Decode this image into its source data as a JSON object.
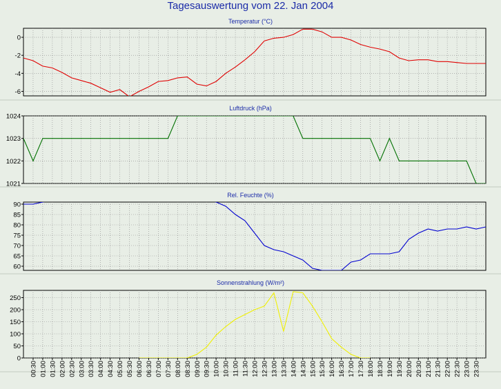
{
  "title": "Tagesauswertung vom 22. Jan 2004",
  "time_labels": [
    "00:30",
    "01:00",
    "01:30",
    "02:00",
    "02:30",
    "03:00",
    "03:30",
    "04:00",
    "04:30",
    "05:00",
    "05:30",
    "06:00",
    "06:30",
    "07:00",
    "07:30",
    "08:00",
    "08:30",
    "09:00",
    "09:30",
    "10:00",
    "10:30",
    "11:00",
    "11:30",
    "12:00",
    "12:30",
    "13:00",
    "13:30",
    "14:00",
    "14:30",
    "15:00",
    "15:30",
    "16:00",
    "16:30",
    "17:00",
    "17:30",
    "18:00",
    "18:30",
    "19:00",
    "19:30",
    "20:00",
    "20:30",
    "21:00",
    "21:30",
    "22:00",
    "22:30",
    "23:00",
    "23:30"
  ],
  "chart_data": [
    {
      "type": "line",
      "title": "Temperatur (°C)",
      "color": "#e00000",
      "ylim": [
        -6.5,
        1
      ],
      "yticks": [
        0,
        -2,
        -4,
        -6
      ],
      "grid": true,
      "x": [
        "00:00",
        "00:30",
        "01:00",
        "01:30",
        "02:00",
        "02:30",
        "03:00",
        "03:30",
        "04:00",
        "04:30",
        "05:00",
        "05:30",
        "06:00",
        "06:30",
        "07:00",
        "07:30",
        "08:00",
        "08:30",
        "09:00",
        "09:30",
        "10:00",
        "10:30",
        "11:00",
        "11:30",
        "12:00",
        "12:30",
        "13:00",
        "13:30",
        "14:00",
        "14:30",
        "15:00",
        "15:30",
        "16:00",
        "16:30",
        "17:00",
        "17:30",
        "18:00",
        "18:30",
        "19:00",
        "19:30",
        "20:00",
        "20:30",
        "21:00",
        "21:30",
        "22:00",
        "22:30",
        "23:00",
        "23:30",
        "24:00"
      ],
      "values": [
        -2.3,
        -2.6,
        -3.2,
        -3.4,
        -3.9,
        -4.5,
        -4.8,
        -5.1,
        -5.6,
        -6.1,
        -5.8,
        -6.6,
        -6.0,
        -5.5,
        -4.9,
        -4.8,
        -4.5,
        -4.4,
        -5.2,
        -5.4,
        -4.9,
        -4.0,
        -3.3,
        -2.5,
        -1.6,
        -0.4,
        -0.1,
        0.0,
        0.3,
        0.9,
        0.9,
        0.6,
        0.0,
        0.0,
        -0.3,
        -0.8,
        -1.1,
        -1.3,
        -1.6,
        -2.3,
        -2.6,
        -2.5,
        -2.5,
        -2.7,
        -2.7,
        -2.8,
        -2.9,
        -2.9,
        -2.9
      ]
    },
    {
      "type": "line",
      "title": "Luftdruck (hPa)",
      "color": "#007000",
      "ylim": [
        1021,
        1024
      ],
      "yticks": [
        1024,
        1023,
        1022,
        1021
      ],
      "grid": true,
      "x": [
        "00:00",
        "00:30",
        "01:00",
        "01:30",
        "02:00",
        "02:30",
        "03:00",
        "03:30",
        "04:00",
        "04:30",
        "05:00",
        "05:30",
        "06:00",
        "06:30",
        "07:00",
        "07:30",
        "08:00",
        "08:30",
        "09:00",
        "09:30",
        "10:00",
        "10:30",
        "11:00",
        "11:30",
        "12:00",
        "12:30",
        "13:00",
        "13:30",
        "14:00",
        "14:30",
        "15:00",
        "15:30",
        "16:00",
        "16:30",
        "17:00",
        "17:30",
        "18:00",
        "18:30",
        "19:00",
        "19:30",
        "20:00",
        "20:30",
        "21:00",
        "21:30",
        "22:00",
        "22:30",
        "23:00",
        "23:30",
        "24:00"
      ],
      "values": [
        1023,
        1022,
        1023,
        1023,
        1023,
        1023,
        1023,
        1023,
        1023,
        1023,
        1023,
        1023,
        1023,
        1023,
        1023,
        1023,
        1024,
        1024,
        1024,
        1024,
        1024,
        1024,
        1024,
        1024,
        1024,
        1024,
        1024,
        1024,
        1024,
        1023,
        1023,
        1023,
        1023,
        1023,
        1023,
        1023,
        1023,
        1022,
        1023,
        1022,
        1022,
        1022,
        1022,
        1022,
        1022,
        1022,
        1022,
        1021,
        1021
      ]
    },
    {
      "type": "line",
      "title": "Rel. Feuchte (%)",
      "color": "#0000d0",
      "ylim": [
        58,
        91
      ],
      "yticks": [
        90,
        85,
        80,
        75,
        70,
        65,
        60
      ],
      "grid": true,
      "x": [
        "00:00",
        "00:30",
        "01:00",
        "01:30",
        "02:00",
        "02:30",
        "03:00",
        "03:30",
        "04:00",
        "04:30",
        "05:00",
        "05:30",
        "06:00",
        "06:30",
        "07:00",
        "07:30",
        "08:00",
        "08:30",
        "09:00",
        "09:30",
        "10:00",
        "10:30",
        "11:00",
        "11:30",
        "12:00",
        "12:30",
        "13:00",
        "13:30",
        "14:00",
        "14:30",
        "15:00",
        "15:30",
        "16:00",
        "16:30",
        "17:00",
        "17:30",
        "18:00",
        "18:30",
        "19:00",
        "19:30",
        "20:00",
        "20:30",
        "21:00",
        "21:30",
        "22:00",
        "22:30",
        "23:00",
        "23:30",
        "24:00"
      ],
      "values": [
        90,
        90,
        91,
        92,
        92,
        92,
        92,
        92,
        92,
        92,
        92,
        92,
        92,
        92,
        92,
        92,
        92,
        92,
        92,
        92,
        91,
        89,
        85,
        82,
        76,
        70,
        68,
        67,
        65,
        63,
        59,
        58,
        58,
        58,
        62,
        63,
        66,
        66,
        66,
        67,
        73,
        76,
        78,
        77,
        78,
        78,
        79,
        78,
        79
      ]
    },
    {
      "type": "line",
      "title": "Sonnenstrahlung (W/m²)",
      "color": "#f0f000",
      "ylim": [
        0,
        280
      ],
      "yticks": [
        250,
        200,
        150,
        100,
        50,
        0
      ],
      "grid": true,
      "x": [
        "06:00",
        "06:30",
        "07:00",
        "07:30",
        "08:00",
        "08:30",
        "09:00",
        "09:30",
        "10:00",
        "10:30",
        "11:00",
        "11:30",
        "12:00",
        "12:30",
        "13:00",
        "13:30",
        "14:00",
        "14:30",
        "15:00",
        "15:30",
        "16:00",
        "16:30",
        "17:00",
        "17:30",
        "18:00"
      ],
      "values": [
        0,
        0,
        0,
        0,
        0,
        0,
        15,
        45,
        95,
        130,
        160,
        180,
        200,
        215,
        270,
        110,
        275,
        270,
        215,
        150,
        80,
        45,
        15,
        0,
        0
      ]
    }
  ]
}
